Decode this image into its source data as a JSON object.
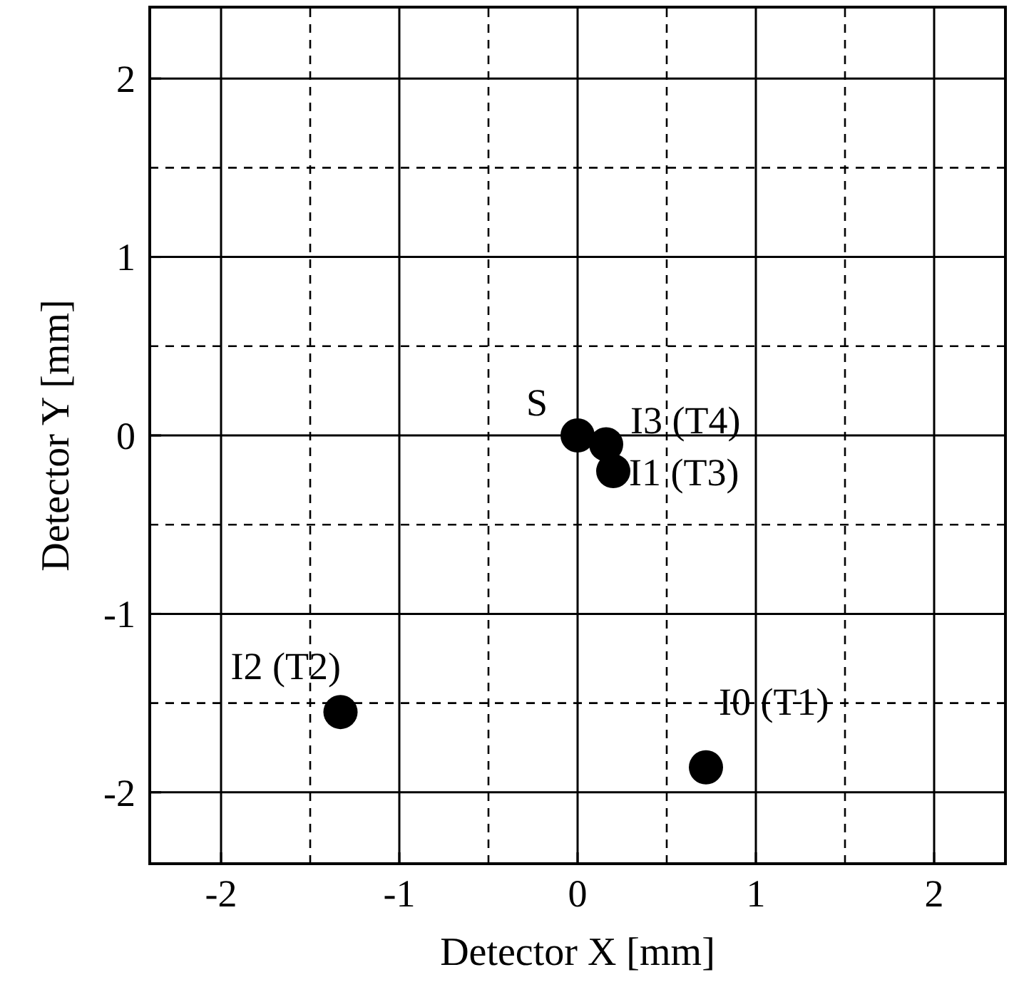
{
  "chart_data": {
    "type": "scatter",
    "xlabel": "Detector X [mm]",
    "ylabel": "Detector Y [mm]",
    "x": [
      0,
      0.16,
      0.2,
      -1.33,
      0.72
    ],
    "series": [
      {
        "color": "#000000",
        "values": [
          0,
          -0.05,
          -0.2,
          -1.55,
          -1.86
        ]
      }
    ],
    "xlim": [
      -2.4,
      2.4
    ],
    "ylim": [
      -2.4,
      2.4
    ],
    "xticks": [
      -2,
      -1,
      0,
      1,
      2
    ],
    "yticks": [
      -2,
      -1,
      0,
      1,
      2
    ],
    "grid": true,
    "marker": "circle",
    "annotations": [
      {
        "text": "S",
        "x": 0,
        "y": 0
      },
      {
        "text": "I3 (T4)",
        "x": 0.16,
        "y": -0.05
      },
      {
        "text": "I1 (T3)",
        "x": 0.2,
        "y": -0.2
      },
      {
        "text": "I2 (T2)",
        "x": -1.33,
        "y": -1.55
      },
      {
        "text": "I0 (T1)",
        "x": 0.72,
        "y": -1.86
      }
    ]
  }
}
